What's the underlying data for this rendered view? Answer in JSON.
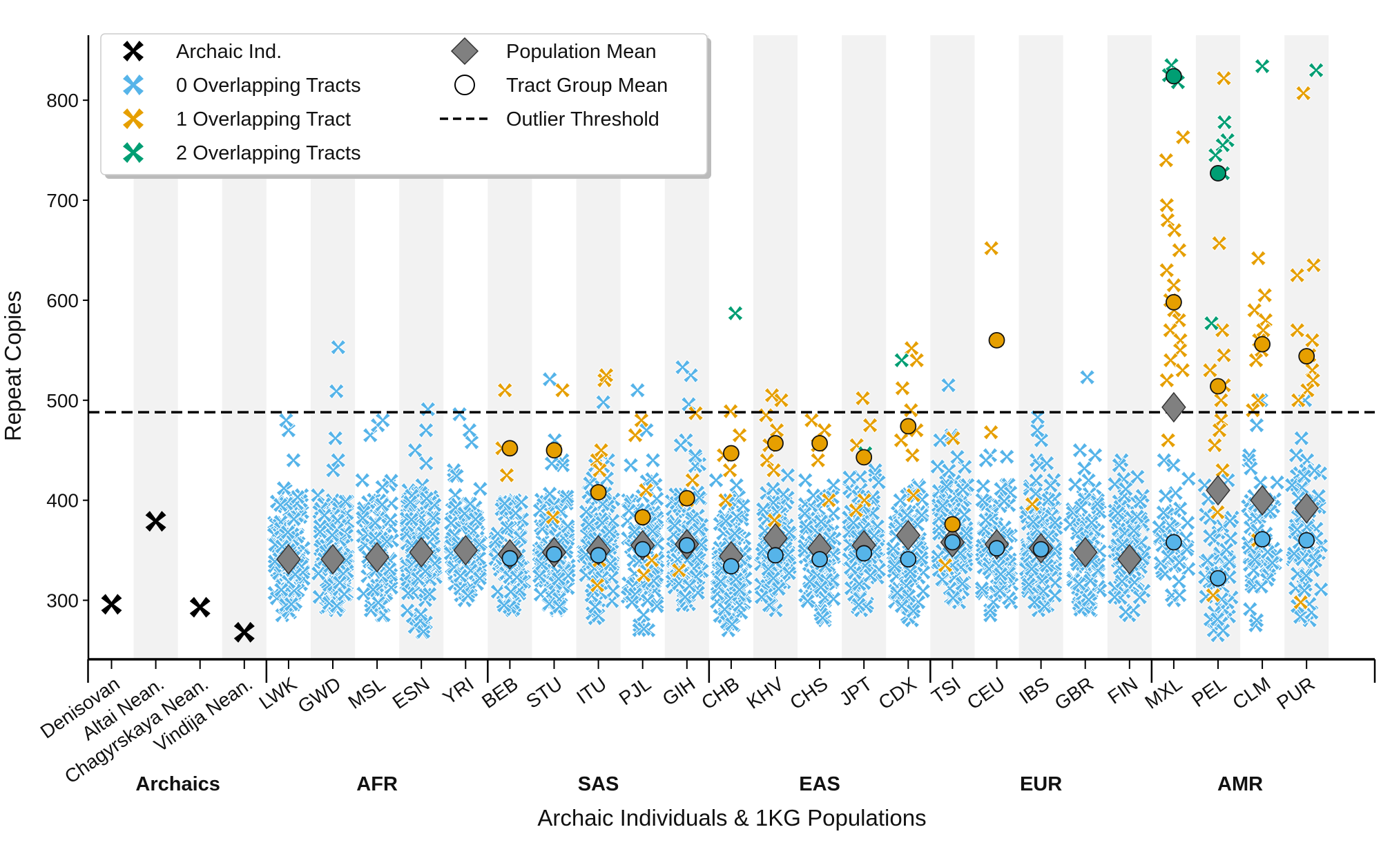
{
  "chart_data": {
    "type": "scatter",
    "title": "",
    "xlabel": "Archaic Individuals & 1KG Populations",
    "ylabel": "Repeat Copies",
    "ylim": [
      241,
      865
    ],
    "yticks": [
      300,
      400,
      500,
      600,
      700,
      800
    ],
    "outlier_threshold": 488,
    "colors": {
      "archaic": "#000000",
      "tracts0": "#56B4E9",
      "tracts1": "#E69F00",
      "tracts2": "#009E73",
      "pop_mean": "#808080",
      "band": "#f2f2f2"
    },
    "legend": {
      "placement": "top-left",
      "items": [
        {
          "label": "Archaic Ind.",
          "marker": "x",
          "color": "#000000"
        },
        {
          "label": "0 Overlapping Tracts",
          "marker": "x",
          "color": "#56B4E9"
        },
        {
          "label": "1 Overlapping Tract",
          "marker": "x",
          "color": "#E69F00"
        },
        {
          "label": "2 Overlapping Tracts",
          "marker": "x",
          "color": "#009E73"
        },
        {
          "label": "Population Mean",
          "marker": "diamond",
          "color": "#808080"
        },
        {
          "label": "Tract Group Mean",
          "marker": "circle",
          "color": "#ffffff"
        },
        {
          "label": "Outlier Threshold",
          "marker": "dash",
          "color": "#000000"
        }
      ]
    },
    "groups": [
      {
        "label": "Archaics",
        "categories": 4
      },
      {
        "label": "AFR",
        "categories": 5
      },
      {
        "label": "SAS",
        "categories": 5
      },
      {
        "label": "EAS",
        "categories": 5
      },
      {
        "label": "EUR",
        "categories": 5
      },
      {
        "label": "AMR",
        "categories": 4
      }
    ],
    "archaics": [
      {
        "name": "Denisovan",
        "value": 296
      },
      {
        "name": "Altai Nean.",
        "value": 379
      },
      {
        "name": "Chagyrskaya Nean.",
        "value": 293
      },
      {
        "name": "Vindija Nean.",
        "value": 268
      }
    ],
    "populations": [
      {
        "name": "LWK",
        "pop_mean": 341,
        "blue_mean": null,
        "orange_mean": null,
        "green_mean": null,
        "blue_range": [
          285,
          410
        ],
        "blue_n": 99,
        "blue_extra": [
          412,
          440,
          470,
          480
        ],
        "orange": [],
        "green": []
      },
      {
        "name": "GWD",
        "pop_mean": 341,
        "blue_mean": null,
        "orange_mean": null,
        "green_mean": null,
        "blue_range": [
          290,
          405
        ],
        "blue_n": 113,
        "blue_extra": [
          430,
          440,
          462,
          509,
          553
        ],
        "orange": [],
        "green": []
      },
      {
        "name": "MSL",
        "pop_mean": 343,
        "blue_mean": null,
        "orange_mean": null,
        "green_mean": null,
        "blue_range": [
          285,
          420
        ],
        "blue_n": 85,
        "blue_extra": [
          465,
          475,
          480
        ],
        "orange": [],
        "green": []
      },
      {
        "name": "ESN",
        "pop_mean": 348,
        "blue_mean": null,
        "orange_mean": null,
        "green_mean": null,
        "blue_range": [
          268,
          415
        ],
        "blue_n": 99,
        "blue_extra": [
          437,
          450,
          470,
          491
        ],
        "orange": [],
        "green": []
      },
      {
        "name": "YRI",
        "pop_mean": 350,
        "blue_mean": null,
        "orange_mean": null,
        "green_mean": null,
        "blue_range": [
          300,
          430
        ],
        "blue_n": 108,
        "blue_extra": [
          458,
          470,
          486
        ],
        "orange": [],
        "green": []
      },
      {
        "name": "BEB",
        "pop_mean": 346,
        "blue_mean": 342,
        "orange_mean": 452,
        "green_mean": null,
        "blue_range": [
          290,
          400
        ],
        "blue_n": 84,
        "blue_extra": [],
        "orange": [
          510,
          452,
          425
        ],
        "green": []
      },
      {
        "name": "STU",
        "pop_mean": 348,
        "blue_mean": 346,
        "orange_mean": 450,
        "green_mean": null,
        "blue_range": [
          290,
          440
        ],
        "blue_n": 99,
        "blue_extra": [
          460,
          521
        ],
        "orange": [
          510,
          450,
          383
        ],
        "green": []
      },
      {
        "name": "ITU",
        "pop_mean": 350,
        "blue_mean": 345,
        "orange_mean": 408,
        "green_mean": null,
        "blue_range": [
          282,
          440
        ],
        "blue_n": 95,
        "blue_extra": [
          498
        ],
        "orange": [
          520,
          525,
          450,
          440,
          430,
          340,
          315
        ],
        "green": []
      },
      {
        "name": "PJL",
        "pop_mean": 355,
        "blue_mean": 351,
        "orange_mean": 383,
        "green_mean": null,
        "blue_range": [
          270,
          440
        ],
        "blue_n": 91,
        "blue_extra": [
          470,
          510
        ],
        "orange": [
          480,
          465,
          410,
          340,
          325
        ],
        "green": []
      },
      {
        "name": "GIH",
        "pop_mean": 356,
        "blue_mean": 355,
        "orange_mean": 402,
        "green_mean": null,
        "blue_range": [
          295,
          460
        ],
        "blue_n": 99,
        "blue_extra": [
          496,
          525,
          533
        ],
        "orange": [
          487,
          420,
          400,
          330
        ],
        "green": []
      },
      {
        "name": "CHB",
        "pop_mean": 344,
        "blue_mean": 334,
        "orange_mean": 447,
        "green_mean": null,
        "blue_range": [
          270,
          420
        ],
        "blue_n": 98,
        "blue_extra": [],
        "orange": [
          489,
          465,
          445,
          430,
          400
        ],
        "green": [
          587
        ]
      },
      {
        "name": "KHV",
        "pop_mean": 362,
        "blue_mean": 345,
        "orange_mean": 457,
        "green_mean": null,
        "blue_range": [
          290,
          430
        ],
        "blue_n": 91,
        "blue_extra": [],
        "orange": [
          505,
          500,
          485,
          470,
          455,
          440,
          430,
          380
        ],
        "green": []
      },
      {
        "name": "CHS",
        "pop_mean": 352,
        "blue_mean": 341,
        "orange_mean": 457,
        "green_mean": null,
        "blue_range": [
          280,
          420
        ],
        "blue_n": 100,
        "blue_extra": [],
        "orange": [
          480,
          470,
          455,
          440,
          400
        ],
        "green": []
      },
      {
        "name": "JPT",
        "pop_mean": 355,
        "blue_mean": 347,
        "orange_mean": 443,
        "green_mean": null,
        "blue_range": [
          290,
          430
        ],
        "blue_n": 99,
        "blue_extra": [],
        "orange": [
          502,
          475,
          455,
          400,
          390
        ],
        "green": [
          447
        ]
      },
      {
        "name": "CDX",
        "pop_mean": 365,
        "blue_mean": 341,
        "orange_mean": 474,
        "green_mean": null,
        "blue_range": [
          280,
          415
        ],
        "blue_n": 85,
        "blue_extra": [],
        "orange": [
          552,
          540,
          512,
          490,
          470,
          460,
          445,
          405
        ],
        "green": [
          540
        ]
      },
      {
        "name": "TSI",
        "pop_mean": 358,
        "blue_mean": 358,
        "orange_mean": 376,
        "green_mean": null,
        "blue_range": [
          298,
          465
        ],
        "blue_n": 105,
        "blue_extra": [
          515
        ],
        "orange": [
          462,
          335
        ],
        "green": []
      },
      {
        "name": "CEU",
        "pop_mean": 356,
        "blue_mean": 352,
        "orange_mean": 560,
        "green_mean": null,
        "blue_range": [
          285,
          445
        ],
        "blue_n": 97,
        "blue_extra": [],
        "orange": [
          652,
          560,
          468
        ],
        "green": []
      },
      {
        "name": "IBS",
        "pop_mean": 352,
        "blue_mean": 351,
        "orange_mean": null,
        "green_mean": null,
        "blue_range": [
          290,
          440
        ],
        "blue_n": 106,
        "blue_extra": [
          460,
          470,
          483
        ],
        "orange": [
          396
        ],
        "green": []
      },
      {
        "name": "GBR",
        "pop_mean": 348,
        "blue_mean": null,
        "orange_mean": null,
        "green_mean": null,
        "blue_range": [
          290,
          450
        ],
        "blue_n": 91,
        "blue_extra": [
          523
        ],
        "orange": [],
        "green": []
      },
      {
        "name": "FIN",
        "pop_mean": 341,
        "blue_mean": null,
        "orange_mean": null,
        "green_mean": null,
        "blue_range": [
          285,
          440
        ],
        "blue_n": 99,
        "blue_extra": [],
        "orange": [],
        "green": []
      },
      {
        "name": "MXL",
        "pop_mean": 493,
        "blue_mean": 358,
        "orange_mean": 598,
        "green_mean": 824,
        "blue_range": [
          300,
          440
        ],
        "blue_n": 40,
        "blue_extra": [],
        "orange": [
          763,
          740,
          695,
          680,
          670,
          650,
          630,
          615,
          600,
          590,
          580,
          570,
          560,
          550,
          540,
          530,
          520,
          460
        ],
        "green": [
          835,
          825,
          818
        ]
      },
      {
        "name": "PEL",
        "pop_mean": 410,
        "blue_mean": 322,
        "orange_mean": 514,
        "green_mean": 727,
        "blue_range": [
          265,
          420
        ],
        "blue_n": 50,
        "blue_extra": [],
        "orange": [
          822,
          657,
          570,
          545,
          530,
          515,
          500,
          480,
          470,
          455,
          430,
          388,
          305
        ],
        "green": [
          778,
          760,
          755,
          745,
          727,
          577
        ]
      },
      {
        "name": "CLM",
        "pop_mean": 400,
        "blue_mean": 361,
        "orange_mean": 556,
        "green_mean": null,
        "blue_range": [
          275,
          445
        ],
        "blue_n": 60,
        "blue_extra": [
          475,
          500
        ],
        "orange": [
          642,
          605,
          590,
          580,
          570,
          560,
          550,
          540,
          500,
          490,
          360
        ],
        "green": [
          834
        ]
      },
      {
        "name": "PUR",
        "pop_mean": 392,
        "blue_mean": 360,
        "orange_mean": 544,
        "green_mean": null,
        "blue_range": [
          280,
          445
        ],
        "blue_n": 70,
        "blue_extra": [
          462,
          500
        ],
        "orange": [
          807,
          635,
          625,
          570,
          560,
          545,
          530,
          520,
          510,
          500,
          298
        ],
        "green": [
          830
        ]
      }
    ]
  }
}
